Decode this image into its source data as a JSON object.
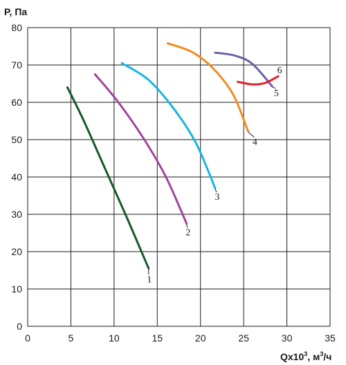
{
  "chart_data": {
    "type": "line",
    "ylabel": "P, Па",
    "xlabel_base": "Qx10",
    "xlabel_exp": "3",
    "xlabel_unit_pre": ", м",
    "xlabel_unit_exp": "3",
    "xlabel_unit_post": "/ч",
    "xlim": [
      0,
      35
    ],
    "ylim": [
      0,
      80
    ],
    "xticks": [
      0,
      5,
      10,
      15,
      20,
      25,
      30,
      35
    ],
    "yticks": [
      0,
      10,
      20,
      30,
      40,
      50,
      60,
      70,
      80
    ],
    "grid": true,
    "series": [
      {
        "name": "1",
        "color": "#145a2a",
        "points": [
          [
            4.6,
            64
          ],
          [
            6.5,
            55
          ],
          [
            9.0,
            42
          ],
          [
            11.5,
            29
          ],
          [
            14.0,
            15.5
          ]
        ]
      },
      {
        "name": "2",
        "color": "#a0449a",
        "points": [
          [
            7.8,
            67.5
          ],
          [
            10.5,
            60
          ],
          [
            13.5,
            50
          ],
          [
            16.0,
            40
          ],
          [
            18.4,
            27.5
          ]
        ]
      },
      {
        "name": "3",
        "color": "#18b4e0",
        "points": [
          [
            10.9,
            70.5
          ],
          [
            14.0,
            66
          ],
          [
            17.0,
            58
          ],
          [
            19.5,
            49
          ],
          [
            21.7,
            37
          ]
        ]
      },
      {
        "name": "4",
        "color": "#f28a1e",
        "points": [
          [
            16.2,
            75.8
          ],
          [
            19.0,
            73.5
          ],
          [
            21.5,
            69
          ],
          [
            23.8,
            62
          ],
          [
            25.5,
            52.3
          ]
        ]
      },
      {
        "name": "5",
        "color": "#6a5fa8",
        "points": [
          [
            21.7,
            73.3
          ],
          [
            24.0,
            72.5
          ],
          [
            26.0,
            70.3
          ],
          [
            28.3,
            64.3
          ]
        ]
      },
      {
        "name": "6",
        "color": "#e0202a",
        "points": [
          [
            24.3,
            65.5
          ],
          [
            26.0,
            64.8
          ],
          [
            27.5,
            65.2
          ],
          [
            29.0,
            67.0
          ]
        ]
      }
    ]
  }
}
